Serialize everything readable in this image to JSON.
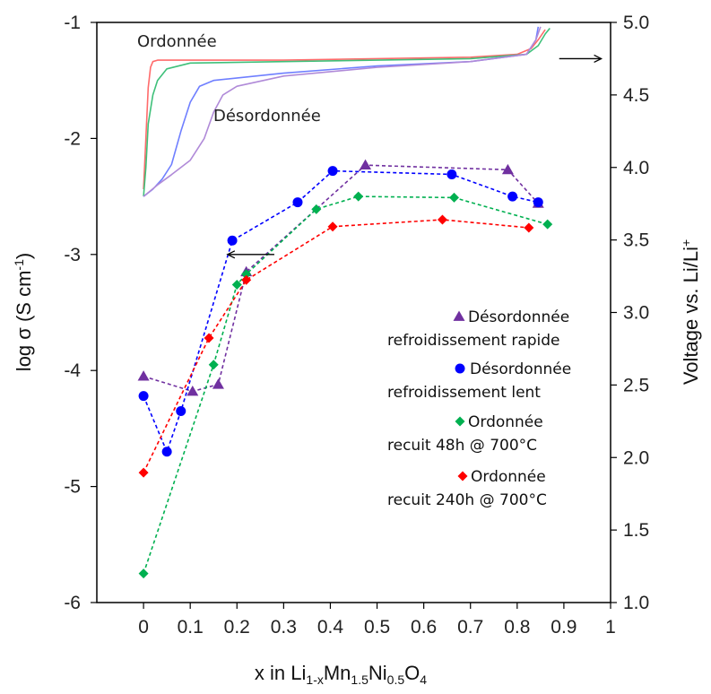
{
  "chart_data": {
    "type": "line",
    "xlabel_main": "x in Li",
    "xlabel_sub1": "1-x",
    "xlabel_mid1": "Mn",
    "xlabel_sub2": "1.5",
    "xlabel_mid2": "Ni",
    "xlabel_sub3": "0.5",
    "xlabel_mid3": "O",
    "xlabel_sub4": "4",
    "ylabel_main": "log σ (S cm",
    "ylabel_sup": "-1",
    "ylabel_end": ")",
    "y2label_main": "Voltage vs. Li/Li",
    "y2label_sup": "+",
    "xlim": [
      -0.1,
      1.0
    ],
    "ylim": [
      -6,
      -1
    ],
    "y2lim": [
      1.0,
      5.0
    ],
    "x_ticks": [
      "0",
      "0.1",
      "0.2",
      "0.3",
      "0.4",
      "0.5",
      "0.6",
      "0.7",
      "0.8",
      "0.9",
      "1"
    ],
    "x_tick_values": [
      0,
      0.1,
      0.2,
      0.3,
      0.4,
      0.5,
      0.6,
      0.7,
      0.8,
      0.9,
      1.0
    ],
    "y_ticks": [
      "-1",
      "-2",
      "-3",
      "-4",
      "-5",
      "-6"
    ],
    "y_tick_values": [
      -1,
      -2,
      -3,
      -4,
      -5,
      -6
    ],
    "y2_ticks": [
      "5.0",
      "4.5",
      "4.0",
      "3.5",
      "3.0",
      "2.5",
      "2.0",
      "1.5",
      "1.0"
    ],
    "y2_tick_values": [
      5.0,
      4.5,
      4.0,
      3.5,
      3.0,
      2.5,
      2.0,
      1.5,
      1.0
    ],
    "annotations": {
      "ordered": "Ordonnée",
      "disordered": "Désordonnée"
    },
    "arrow_right": {
      "from": [
        0.89,
        4.75
      ],
      "to": [
        0.98,
        4.75
      ]
    },
    "arrow_left": {
      "from": [
        0.28,
        -3.0
      ],
      "to": [
        0.18,
        -3.0
      ]
    },
    "conductivity_series": [
      {
        "name_line1": "Désordonnée",
        "name_line2": "refroidissement rapide",
        "color": "#7030a0",
        "marker": "triangle",
        "x": [
          0.0,
          0.105,
          0.16,
          0.22,
          0.475,
          0.78,
          0.845
        ],
        "y": [
          -4.05,
          -4.18,
          -4.12,
          -3.15,
          -2.23,
          -2.27,
          -2.56
        ]
      },
      {
        "name_line1": "Désordonnée",
        "name_line2": "refroidissement lent",
        "color": "#0000ff",
        "marker": "circle",
        "x": [
          0.0,
          0.05,
          0.08,
          0.19,
          0.33,
          0.405,
          0.66,
          0.79,
          0.845
        ],
        "y": [
          -4.22,
          -4.7,
          -4.35,
          -2.88,
          -2.55,
          -2.28,
          -2.31,
          -2.5,
          -2.55
        ]
      },
      {
        "name_line1": "Ordonnée",
        "name_line2": "recuit 48h @ 700°C",
        "color": "#00b050",
        "marker": "diamond",
        "x": [
          0.0,
          0.15,
          0.2,
          0.22,
          0.37,
          0.46,
          0.665,
          0.865
        ],
        "y": [
          -5.75,
          -3.95,
          -3.26,
          -3.17,
          -2.61,
          -2.5,
          -2.51,
          -2.74
        ]
      },
      {
        "name_line1": "Ordonnée",
        "name_line2": "recuit 240h @ 700°C",
        "color": "#ff0000",
        "marker": "diamond",
        "x": [
          0.0,
          0.14,
          0.22,
          0.405,
          0.64,
          0.825
        ],
        "y": [
          -4.88,
          -3.72,
          -3.22,
          -2.76,
          -2.7,
          -2.77
        ]
      }
    ],
    "voltage_curves": [
      {
        "color": "#ff6b6b",
        "x": [
          0,
          0.005,
          0.01,
          0.015,
          0.02,
          0.03,
          0.1,
          0.3,
          0.5,
          0.7,
          0.8,
          0.83,
          0.845,
          0.86
        ],
        "y": [
          3.85,
          4.2,
          4.55,
          4.69,
          4.73,
          4.74,
          4.74,
          4.74,
          4.75,
          4.76,
          4.78,
          4.82,
          4.88,
          4.95
        ]
      },
      {
        "color": "#3fc07a",
        "x": [
          0,
          0.005,
          0.01,
          0.02,
          0.03,
          0.05,
          0.1,
          0.3,
          0.5,
          0.7,
          0.82,
          0.845,
          0.86,
          0.87
        ],
        "y": [
          3.8,
          4.0,
          4.3,
          4.5,
          4.6,
          4.68,
          4.72,
          4.73,
          4.74,
          4.75,
          4.78,
          4.84,
          4.92,
          4.96
        ]
      },
      {
        "color": "#6f7fff",
        "x": [
          0,
          0.02,
          0.04,
          0.06,
          0.08,
          0.1,
          0.12,
          0.15,
          0.3,
          0.5,
          0.7,
          0.82,
          0.84,
          0.845
        ],
        "y": [
          3.8,
          3.85,
          3.92,
          4.02,
          4.25,
          4.45,
          4.56,
          4.6,
          4.65,
          4.7,
          4.73,
          4.78,
          4.88,
          4.97
        ]
      },
      {
        "color": "#b08ad8",
        "x": [
          0,
          0.03,
          0.06,
          0.1,
          0.13,
          0.15,
          0.17,
          0.2,
          0.3,
          0.5,
          0.7,
          0.82,
          0.84,
          0.85
        ],
        "y": [
          3.8,
          3.88,
          3.95,
          4.05,
          4.2,
          4.38,
          4.5,
          4.56,
          4.63,
          4.69,
          4.73,
          4.78,
          4.88,
          4.97
        ]
      }
    ]
  }
}
